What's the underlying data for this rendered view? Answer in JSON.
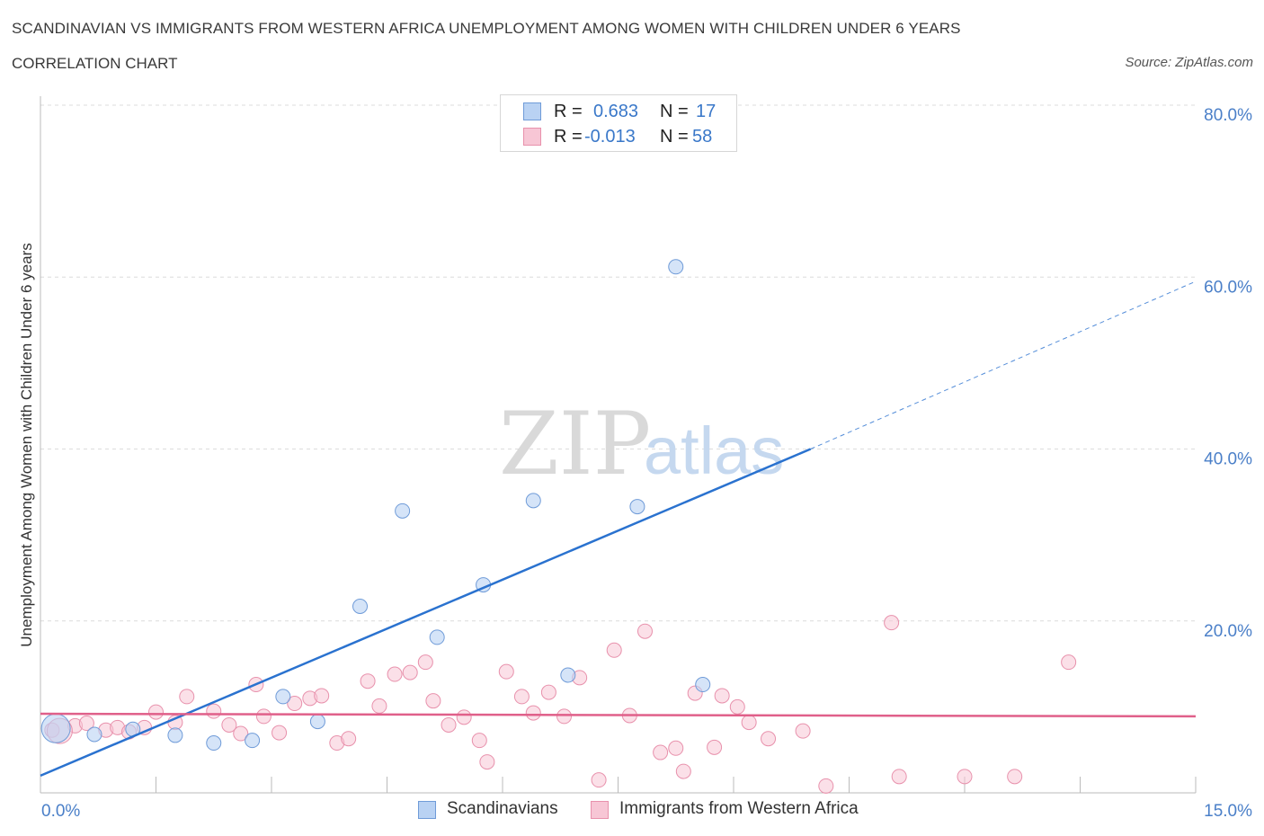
{
  "header": {
    "title": "SCANDINAVIAN VS IMMIGRANTS FROM WESTERN AFRICA UNEMPLOYMENT AMONG WOMEN WITH CHILDREN UNDER 6 YEARS",
    "subtitle": "CORRELATION CHART",
    "source": "Source: ZipAtlas.com"
  },
  "watermark": {
    "zip": "ZIP",
    "atlas": "atlas"
  },
  "legend": {
    "rows": [
      {
        "r_label": "R =",
        "r_value": "0.683",
        "n_label": "N =",
        "n_value": "17"
      },
      {
        "r_label": "R =",
        "r_value": "-0.013",
        "n_label": "N =",
        "n_value": "58"
      }
    ]
  },
  "bottom_legend": {
    "items": [
      {
        "label": "Scandinavians"
      },
      {
        "label": "Immigrants from Western Africa"
      }
    ]
  },
  "colors": {
    "scandinavian_fill": "#b9d2f3",
    "scandinavian_stroke": "#6f9bd8",
    "scandinavian_line": "#2a72cf",
    "immigrant_fill": "#f7c6d5",
    "immigrant_stroke": "#e891ac",
    "immigrant_line": "#e0608a",
    "tick_text": "#4a7fc8",
    "grid": "#dcdcdc"
  },
  "chart_data": {
    "type": "scatter",
    "title": "SCANDINAVIAN VS IMMIGRANTS FROM WESTERN AFRICA UNEMPLOYMENT AMONG WOMEN WITH CHILDREN UNDER 6 YEARS",
    "xlabel": "",
    "ylabel": "Unemployment Among Women with Children Under 6 years",
    "xlim": [
      0,
      15
    ],
    "ylim": [
      0,
      80
    ],
    "x_tick_labels": [
      "0.0%",
      "15.0%"
    ],
    "y_ticks": [
      20,
      40,
      60,
      80
    ],
    "y_tick_labels": [
      "20.0%",
      "40.0%",
      "60.0%",
      "80.0%"
    ],
    "grid": "horizontal dashed",
    "legend_position": "top-center and bottom",
    "series": [
      {
        "name": "Scandinavians",
        "points": [
          [
            0.2,
            7.5
          ],
          [
            0.7,
            6.8
          ],
          [
            1.2,
            7.4
          ],
          [
            1.75,
            6.7
          ],
          [
            2.25,
            5.8
          ],
          [
            2.75,
            6.1
          ],
          [
            3.15,
            11.2
          ],
          [
            3.6,
            8.3
          ],
          [
            4.15,
            21.7
          ],
          [
            4.7,
            32.8
          ],
          [
            5.15,
            18.1
          ],
          [
            5.75,
            24.2
          ],
          [
            6.4,
            34.0
          ],
          [
            6.85,
            13.7
          ],
          [
            7.75,
            33.3
          ],
          [
            8.25,
            61.2
          ],
          [
            8.6,
            12.6
          ]
        ],
        "trend": {
          "x": [
            0,
            10
          ],
          "y": [
            2.0,
            40.0
          ],
          "dashed_to": [
            15,
            59.5
          ]
        }
      },
      {
        "name": "Immigrants from Western Africa",
        "points": [
          [
            0.15,
            7.3
          ],
          [
            0.45,
            7.8
          ],
          [
            0.6,
            8.1
          ],
          [
            0.85,
            7.3
          ],
          [
            1.0,
            7.6
          ],
          [
            1.15,
            7.1
          ],
          [
            1.35,
            7.6
          ],
          [
            1.5,
            9.4
          ],
          [
            1.75,
            8.2
          ],
          [
            1.9,
            11.2
          ],
          [
            2.25,
            9.5
          ],
          [
            2.45,
            7.9
          ],
          [
            2.6,
            6.9
          ],
          [
            2.8,
            12.6
          ],
          [
            2.9,
            8.9
          ],
          [
            3.1,
            7.0
          ],
          [
            3.3,
            10.4
          ],
          [
            3.5,
            11.0
          ],
          [
            3.65,
            11.3
          ],
          [
            3.85,
            5.8
          ],
          [
            4.0,
            6.3
          ],
          [
            4.25,
            13.0
          ],
          [
            4.4,
            10.1
          ],
          [
            4.6,
            13.8
          ],
          [
            4.8,
            14.0
          ],
          [
            5.0,
            15.2
          ],
          [
            5.1,
            10.7
          ],
          [
            5.3,
            7.9
          ],
          [
            5.5,
            8.8
          ],
          [
            5.7,
            6.1
          ],
          [
            5.8,
            3.6
          ],
          [
            6.05,
            14.1
          ],
          [
            6.25,
            11.2
          ],
          [
            6.4,
            9.3
          ],
          [
            6.6,
            11.7
          ],
          [
            6.8,
            8.9
          ],
          [
            7.0,
            13.4
          ],
          [
            7.25,
            1.5
          ],
          [
            7.45,
            16.6
          ],
          [
            7.65,
            9.0
          ],
          [
            7.85,
            18.8
          ],
          [
            8.05,
            4.7
          ],
          [
            8.25,
            5.2
          ],
          [
            8.35,
            2.5
          ],
          [
            8.5,
            11.6
          ],
          [
            8.75,
            5.3
          ],
          [
            8.85,
            11.3
          ],
          [
            9.05,
            10.0
          ],
          [
            9.2,
            8.2
          ],
          [
            9.45,
            6.3
          ],
          [
            9.9,
            7.2
          ],
          [
            10.2,
            0.8
          ],
          [
            11.05,
            19.8
          ],
          [
            11.15,
            1.9
          ],
          [
            12.0,
            1.9
          ],
          [
            12.65,
            1.9
          ],
          [
            13.35,
            15.2
          ],
          [
            0.25,
            7.2
          ]
        ],
        "trend": {
          "x": [
            0,
            15
          ],
          "y": [
            9.2,
            8.9
          ]
        }
      }
    ]
  }
}
